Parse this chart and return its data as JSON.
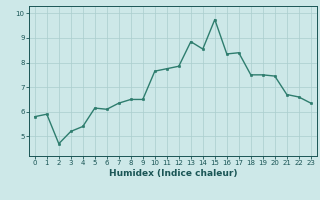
{
  "x": [
    0,
    1,
    2,
    3,
    4,
    5,
    6,
    7,
    8,
    9,
    10,
    11,
    12,
    13,
    14,
    15,
    16,
    17,
    18,
    19,
    20,
    21,
    22,
    23
  ],
  "y": [
    5.8,
    5.9,
    4.7,
    5.2,
    5.4,
    6.15,
    6.1,
    6.35,
    6.5,
    6.5,
    7.65,
    7.75,
    7.85,
    8.85,
    8.55,
    9.75,
    8.35,
    8.4,
    7.5,
    7.5,
    7.45,
    6.7,
    6.6,
    6.35
  ],
  "line_color": "#2e7d6e",
  "marker": "o",
  "marker_size": 1.8,
  "xlabel": "Humidex (Indice chaleur)",
  "xlim": [
    -0.5,
    23.5
  ],
  "ylim": [
    4.2,
    10.3
  ],
  "yticks": [
    5,
    6,
    7,
    8,
    9,
    10
  ],
  "xticks": [
    0,
    1,
    2,
    3,
    4,
    5,
    6,
    7,
    8,
    9,
    10,
    11,
    12,
    13,
    14,
    15,
    16,
    17,
    18,
    19,
    20,
    21,
    22,
    23
  ],
  "bg_color": "#cde8e8",
  "grid_color": "#aacece",
  "tick_color": "#1a5555",
  "label_color": "#1a5555",
  "xlabel_fontsize": 6.5,
  "tick_fontsize": 5.0,
  "linewidth": 1.0
}
